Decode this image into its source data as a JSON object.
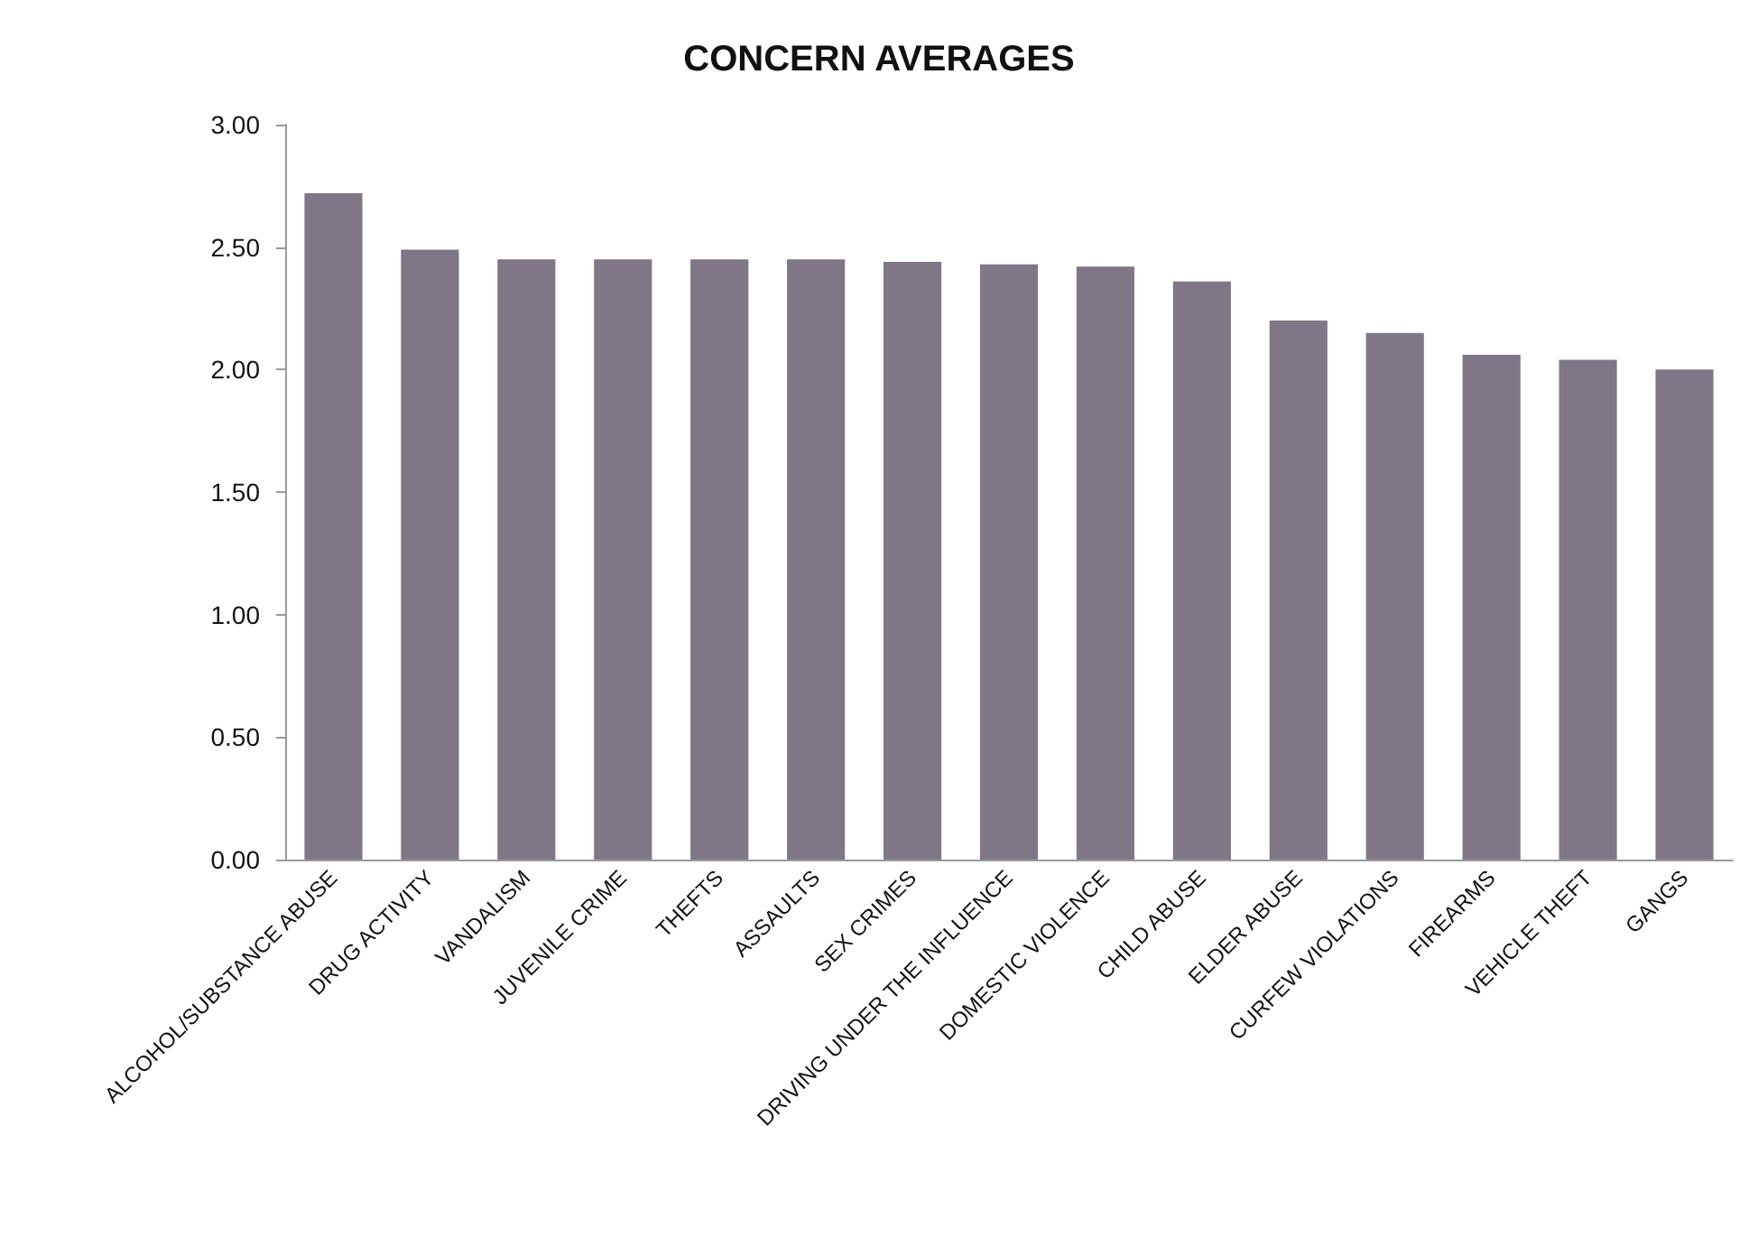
{
  "chart_data": {
    "type": "bar",
    "title": "CONCERN AVERAGES",
    "categories": [
      "ALCOHOL/SUBSTANCE ABUSE",
      "DRUG ACTIVITY",
      "VANDALISM",
      "JUVENILE CRIME",
      "THEFTS",
      "ASSAULTS",
      "SEX CRIMES",
      "DRIVING UNDER THE INFLUENCE",
      "DOMESTIC VIOLENCE",
      "CHILD ABUSE",
      "ELDER ABUSE",
      "CURFEW VIOLATIONS",
      "FIREARMS",
      "VEHICLE THEFT",
      "GANGS"
    ],
    "values": [
      2.72,
      2.49,
      2.45,
      2.45,
      2.45,
      2.45,
      2.44,
      2.43,
      2.42,
      2.36,
      2.2,
      2.15,
      2.06,
      2.04,
      2.0
    ],
    "color": "#807786",
    "ylim": [
      0,
      3
    ],
    "yticks": [
      {
        "value": 0,
        "label": "0.00"
      },
      {
        "value": 0.5,
        "label": "0.50"
      },
      {
        "value": 1,
        "label": "1.00"
      },
      {
        "value": 1.5,
        "label": "1.50"
      },
      {
        "value": 2,
        "label": "2.00"
      },
      {
        "value": 2.5,
        "label": "2.50"
      },
      {
        "value": 3,
        "label": "3.00"
      }
    ],
    "grid": false
  }
}
